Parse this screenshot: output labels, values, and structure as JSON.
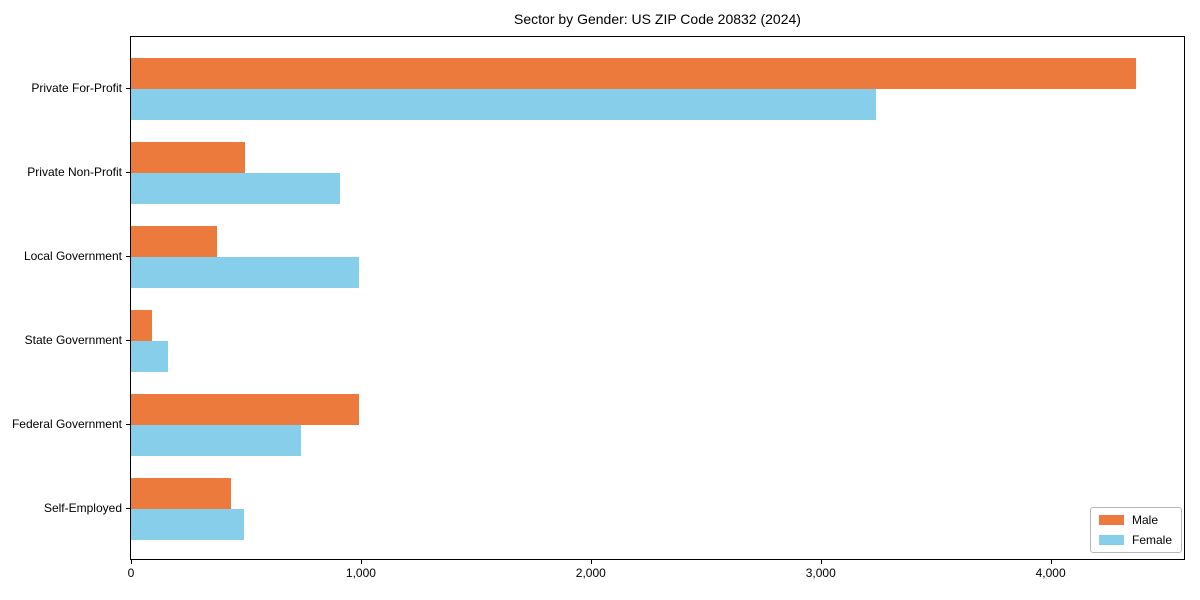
{
  "title": "Sector by Gender: US ZIP Code 20832 (2024)",
  "chart_data": {
    "type": "bar",
    "orientation": "horizontal",
    "title": "Sector by Gender: US ZIP Code 20832 (2024)",
    "categories": [
      "Private For-Profit",
      "Private Non-Profit",
      "Local Government",
      "State Government",
      "Federal Government",
      "Self-Employed"
    ],
    "series": [
      {
        "name": "Male",
        "color": "#EC7A3C",
        "values": [
          4370,
          495,
          375,
          90,
          990,
          435
        ]
      },
      {
        "name": "Female",
        "color": "#87CEEB",
        "values": [
          3240,
          910,
          990,
          160,
          740,
          490
        ]
      }
    ],
    "xlabel": "",
    "ylabel": "",
    "xlim": [
      0,
      4580
    ],
    "xticks": [
      0,
      1000,
      2000,
      3000,
      4000
    ],
    "xtick_labels": [
      "0",
      "1,000",
      "2,000",
      "3,000",
      "4,000"
    ],
    "grid": false,
    "legend": {
      "position": "lower right",
      "entries": [
        "Male",
        "Female"
      ]
    }
  }
}
